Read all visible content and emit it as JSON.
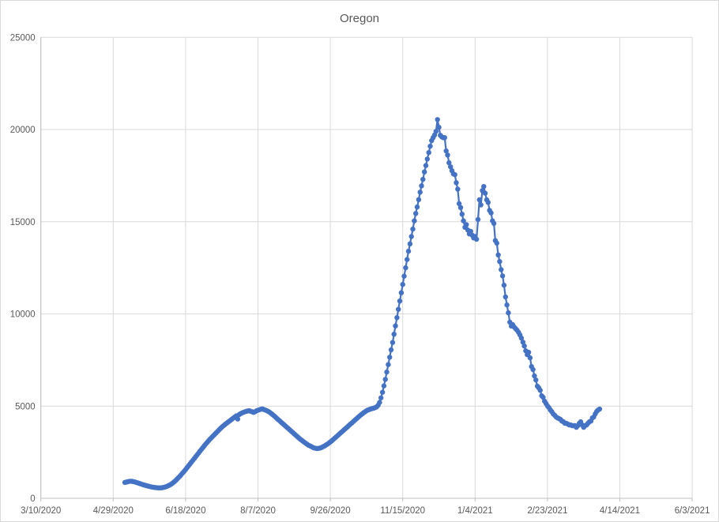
{
  "chart_data": {
    "type": "line",
    "title": "Oregon",
    "legend": "none",
    "grid": true,
    "x_axis": {
      "kind": "date",
      "tick_labels": [
        "3/10/2020",
        "4/29/2020",
        "6/18/2020",
        "8/7/2020",
        "9/26/2020",
        "11/15/2020",
        "1/4/2021",
        "2/23/2021",
        "4/14/2021",
        "6/3/2021"
      ],
      "tick_interval_days": 50,
      "range_days": [
        0,
        450
      ]
    },
    "y_axis": {
      "tick_labels": [
        "0",
        "5000",
        "10000",
        "15000",
        "20000",
        "25000"
      ],
      "min": 0,
      "max": 25000,
      "tick_interval": 5000
    },
    "series": [
      {
        "name": "Oregon",
        "marker": "circle",
        "line": true,
        "frequency": "daily",
        "start_date": "5/7/2020",
        "end_date": "3/31/2021",
        "start_day_offset_from_axis_min": 58,
        "values": [
          860,
          880,
          900,
          915,
          925,
          920,
          905,
          885,
          860,
          835,
          810,
          785,
          755,
          730,
          705,
          685,
          665,
          645,
          625,
          610,
          595,
          585,
          575,
          570,
          565,
          570,
          580,
          595,
          615,
          645,
          680,
          720,
          765,
          820,
          885,
          955,
          1035,
          1115,
          1195,
          1285,
          1375,
          1465,
          1560,
          1660,
          1760,
          1860,
          1960,
          2060,
          2160,
          2260,
          2360,
          2460,
          2560,
          2660,
          2760,
          2855,
          2950,
          3040,
          3130,
          3215,
          3300,
          3380,
          3460,
          3540,
          3620,
          3700,
          3780,
          3855,
          3925,
          3990,
          4050,
          4110,
          4170,
          4230,
          4290,
          4350,
          4410,
          4470,
          4300,
          4540,
          4590,
          4630,
          4665,
          4695,
          4720,
          4740,
          4750,
          4720,
          4690,
          4660,
          4700,
          4750,
          4780,
          4800,
          4830,
          4850,
          4820,
          4790,
          4755,
          4720,
          4670,
          4610,
          4550,
          4480,
          4410,
          4340,
          4270,
          4200,
          4130,
          4060,
          3990,
          3920,
          3850,
          3780,
          3710,
          3640,
          3570,
          3500,
          3430,
          3360,
          3290,
          3220,
          3160,
          3100,
          3040,
          2980,
          2930,
          2880,
          2840,
          2800,
          2760,
          2730,
          2710,
          2700,
          2710,
          2730,
          2760,
          2800,
          2840,
          2890,
          2940,
          3000,
          3060,
          3120,
          3190,
          3260,
          3330,
          3400,
          3470,
          3540,
          3610,
          3680,
          3750,
          3820,
          3890,
          3960,
          4030,
          4100,
          4170,
          4240,
          4310,
          4380,
          4450,
          4520,
          4580,
          4640,
          4700,
          4750,
          4790,
          4820,
          4850,
          4870,
          4890,
          4920,
          4960,
          5050,
          5200,
          5450,
          5750,
          6100,
          6450,
          6850,
          7250,
          7650,
          8050,
          8450,
          8900,
          9350,
          9800,
          10250,
          10700,
          11150,
          11600,
          12050,
          12500,
          12950,
          13400,
          13800,
          14200,
          14600,
          15050,
          15450,
          15800,
          16200,
          16600,
          16950,
          17300,
          17700,
          18050,
          18400,
          18750,
          19100,
          19400,
          19560,
          19700,
          19900,
          20540,
          20120,
          19690,
          19600,
          19560,
          19560,
          18840,
          18620,
          18200,
          17980,
          17770,
          17600,
          17550,
          17120,
          16770,
          15980,
          15770,
          15410,
          15050,
          14700,
          14840,
          14550,
          14340,
          14480,
          14270,
          14120,
          14200,
          14050,
          15120,
          16190,
          15910,
          16690,
          16910,
          16550,
          16190,
          16050,
          15620,
          15480,
          15050,
          14910,
          13980,
          13840,
          13200,
          12840,
          12400,
          12060,
          11560,
          10920,
          10490,
          10060,
          9550,
          9340,
          9420,
          9290,
          9200,
          9120,
          9000,
          8860,
          8690,
          8470,
          8260,
          8000,
          7790,
          7920,
          7620,
          7150,
          6980,
          6640,
          6420,
          6080,
          5990,
          5860,
          5560,
          5480,
          5270,
          5140,
          5010,
          4920,
          4790,
          4700,
          4580,
          4500,
          4410,
          4360,
          4320,
          4280,
          4190,
          4150,
          4070,
          4070,
          4030,
          3980,
          3980,
          3940,
          3940,
          3940,
          3850,
          3940,
          4070,
          4150,
          3980,
          3850,
          3940,
          3980,
          4070,
          4150,
          4190,
          4360,
          4410,
          4580,
          4710,
          4790,
          4840
        ]
      }
    ]
  },
  "style": {
    "series_color": "#4472C4",
    "gridline_color": "#D9D9D9",
    "axis_color": "#BFBFBF",
    "text_color": "#595959",
    "background": "#FFFFFF"
  }
}
